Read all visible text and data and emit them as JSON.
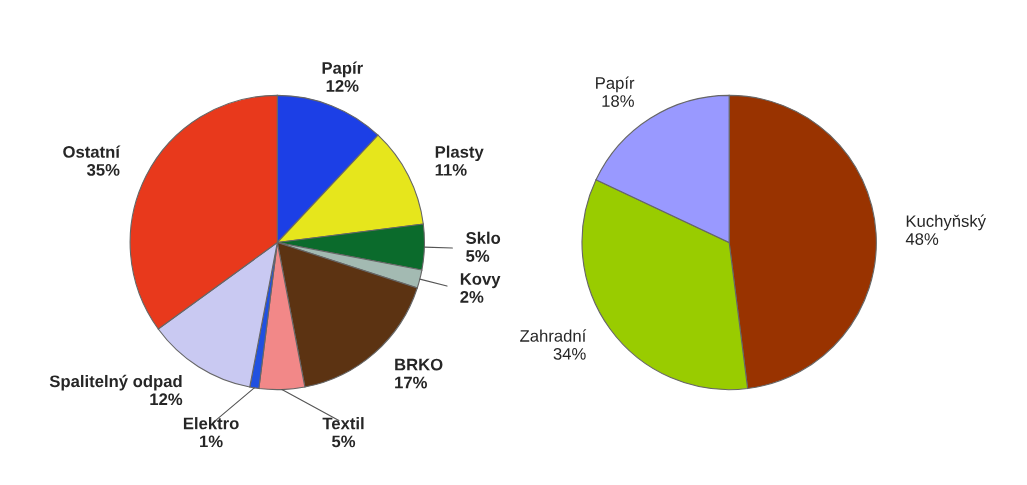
{
  "chart_data": [
    {
      "type": "pie",
      "categories": [
        "Papír",
        "Plasty",
        "Sklo",
        "Kovy",
        "BRKO",
        "Textil",
        "Elektro",
        "Spalitelný odpad",
        "Ostatní"
      ],
      "values": [
        12,
        11,
        5,
        2,
        17,
        5,
        1,
        12,
        35
      ],
      "value_labels": [
        "12%",
        "11%",
        "5%",
        "2%",
        "17%",
        "5%",
        "1%",
        "12%",
        "35%"
      ],
      "colors": [
        "#1c3fe6",
        "#e6e61c",
        "#0b6b2c",
        "#a3bab2",
        "#5c3312",
        "#f28888",
        "#2050e0",
        "#c9c9f2",
        "#e8391c"
      ]
    },
    {
      "type": "pie",
      "categories": [
        "Kuchyňský",
        "Zahradní",
        "Papír"
      ],
      "values": [
        48,
        34,
        18
      ],
      "value_labels": [
        "48%",
        "34%",
        "18%"
      ],
      "colors": [
        "#993300",
        "#99cc00",
        "#9999ff"
      ]
    }
  ]
}
